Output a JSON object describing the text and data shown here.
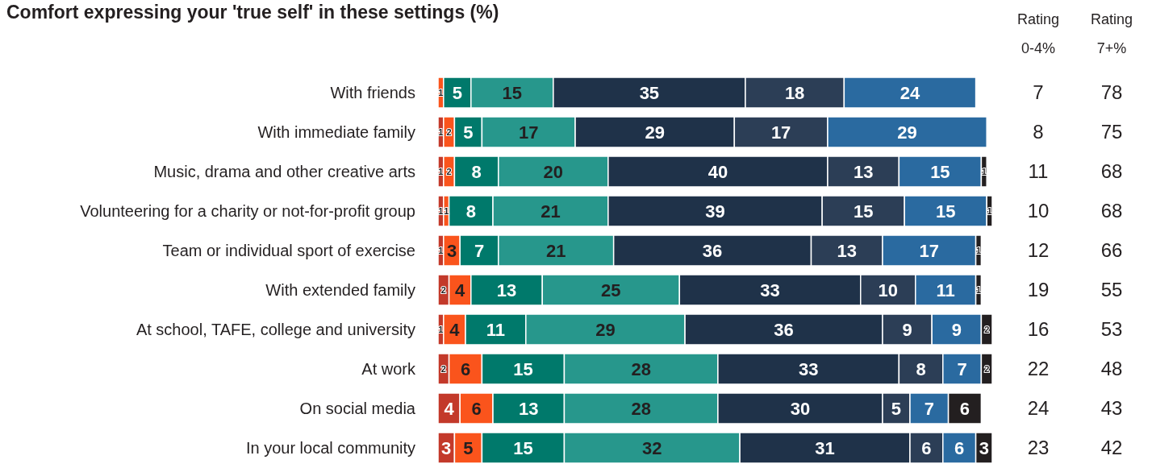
{
  "chart_data": {
    "type": "bar",
    "orientation": "horizontal",
    "stacked": true,
    "data_labels": true,
    "title": "Comfort expressing your 'true self' in these settings (%)",
    "categories": [
      "With friends",
      "With immediate family",
      "Music, drama and other creative arts",
      "Volunteering for a charity or not-for-profit group",
      "Team or individual sport of exercise",
      "With extended family",
      "At school, TAFE, college and university",
      "At work",
      "On social media",
      "In your local community"
    ],
    "series": [
      {
        "color": "#c3392a",
        "values": [
          null,
          1,
          1,
          1,
          1,
          2,
          1,
          2,
          4,
          3
        ]
      },
      {
        "color": "#fa541c",
        "values": [
          1,
          2,
          2,
          1,
          3,
          4,
          4,
          6,
          6,
          5
        ]
      },
      {
        "color": "#00796b",
        "values": [
          5,
          5,
          8,
          8,
          7,
          13,
          11,
          15,
          13,
          15
        ]
      },
      {
        "color": "#27978c",
        "values": [
          15,
          17,
          20,
          21,
          21,
          25,
          29,
          28,
          28,
          32
        ]
      },
      {
        "color": "#1f3249",
        "values": [
          35,
          29,
          40,
          39,
          36,
          33,
          36,
          33,
          30,
          31
        ]
      },
      {
        "color": "#2c3e56",
        "values": [
          18,
          17,
          13,
          15,
          13,
          10,
          9,
          8,
          5,
          6
        ]
      },
      {
        "color": "#2a6aa0",
        "values": [
          24,
          29,
          15,
          15,
          17,
          11,
          9,
          7,
          7,
          6
        ]
      },
      {
        "color": "#231f20",
        "values": [
          null,
          null,
          1,
          1,
          1,
          1,
          2,
          2,
          6,
          3
        ]
      }
    ],
    "annotations": [
      "Rating 0-4%",
      "Rating 7+%",
      "7",
      "78",
      "8",
      "75",
      "11",
      "68",
      "10",
      "68",
      "12",
      "66",
      "19",
      "55",
      "16",
      "53",
      "22",
      "48",
      "24",
      "43",
      "23",
      "42"
    ]
  }
}
